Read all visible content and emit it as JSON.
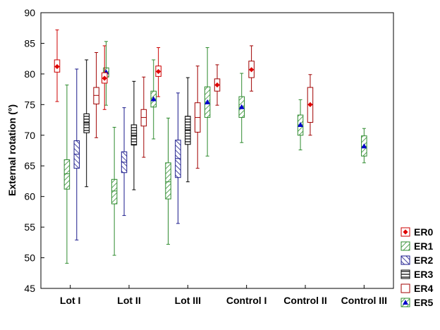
{
  "chart_data": {
    "type": "boxplot",
    "ylabel": "External rotation (°)",
    "xlabel": "",
    "ylim": [
      45,
      90
    ],
    "yticks": [
      45,
      50,
      55,
      60,
      65,
      70,
      75,
      80,
      85,
      90
    ],
    "grid": false,
    "legend_position": "right-bottom",
    "categories": [
      "Lot I",
      "Lot II",
      "Lot III",
      "Control I",
      "Control II",
      "Control III"
    ],
    "series": [
      {
        "name": "ER0",
        "color": "#cc0000",
        "pattern": "filled",
        "marker": "diamond"
      },
      {
        "name": "ER1",
        "color": "#2e8b2e",
        "pattern": "diag-right"
      },
      {
        "name": "ER2",
        "color": "#1a1a8c",
        "pattern": "diag-left"
      },
      {
        "name": "ER3",
        "color": "#000000",
        "pattern": "horizontal"
      },
      {
        "name": "ER4",
        "color": "#a00000",
        "pattern": "empty"
      },
      {
        "name": "ER5",
        "color": "#2e8b2e",
        "pattern": "diag-right",
        "marker": "triangle"
      }
    ],
    "boxes": [
      {
        "category": "Lot I",
        "series": "ER0",
        "min": 75.5,
        "q1": 80.3,
        "median": 81.2,
        "q3": 82.3,
        "max": 87.2,
        "mean": 81.2
      },
      {
        "category": "Lot I",
        "series": "ER1",
        "min": 49.1,
        "q1": 61.2,
        "median": 63.7,
        "q3": 66.0,
        "max": 78.2
      },
      {
        "category": "Lot I",
        "series": "ER2",
        "min": 52.9,
        "q1": 64.6,
        "median": 66.9,
        "q3": 69.1,
        "max": 80.8
      },
      {
        "category": "Lot I",
        "series": "ER3",
        "min": 61.6,
        "q1": 70.4,
        "median": 72.0,
        "q3": 73.5,
        "max": 82.3
      },
      {
        "category": "Lot I",
        "series": "ER4",
        "min": 69.6,
        "q1": 75.1,
        "median": 76.5,
        "q3": 77.8,
        "max": 83.5
      },
      {
        "category": "Lot I",
        "series": "ER5",
        "min": 74.9,
        "q1": 79.5,
        "median": 80.3,
        "q3": 81.0,
        "max": 85.3,
        "mean": 80.3
      },
      {
        "category": "Lot II",
        "series": "ER0",
        "min": 74.2,
        "q1": 78.5,
        "median": 79.3,
        "q3": 80.2,
        "max": 84.6,
        "mean": 79.3
      },
      {
        "category": "Lot II",
        "series": "ER1",
        "min": 50.4,
        "q1": 58.8,
        "median": 60.9,
        "q3": 62.8,
        "max": 71.3
      },
      {
        "category": "Lot II",
        "series": "ER2",
        "min": 56.9,
        "q1": 63.9,
        "median": 65.6,
        "q3": 67.3,
        "max": 74.5
      },
      {
        "category": "Lot II",
        "series": "ER3",
        "min": 61.1,
        "q1": 68.4,
        "median": 70.0,
        "q3": 71.7,
        "max": 78.8
      },
      {
        "category": "Lot II",
        "series": "ER4",
        "min": 66.4,
        "q1": 71.5,
        "median": 72.9,
        "q3": 74.2,
        "max": 79.5
      },
      {
        "category": "Lot II",
        "series": "ER5",
        "min": 69.4,
        "q1": 74.6,
        "median": 75.9,
        "q3": 77.2,
        "max": 82.3,
        "mean": 75.9
      },
      {
        "category": "Lot III",
        "series": "ER0",
        "min": 76.3,
        "q1": 79.6,
        "median": 80.4,
        "q3": 81.3,
        "max": 84.3,
        "mean": 80.4
      },
      {
        "category": "Lot III",
        "series": "ER1",
        "min": 52.2,
        "q1": 59.6,
        "median": 62.4,
        "q3": 65.5,
        "max": 72.8
      },
      {
        "category": "Lot III",
        "series": "ER2",
        "min": 55.6,
        "q1": 63.1,
        "median": 66.2,
        "q3": 69.2,
        "max": 76.9
      },
      {
        "category": "Lot III",
        "series": "ER3",
        "min": 62.4,
        "q1": 68.5,
        "median": 70.9,
        "q3": 73.1,
        "max": 79.4
      },
      {
        "category": "Lot III",
        "series": "ER4",
        "min": 64.6,
        "q1": 70.5,
        "median": 72.9,
        "q3": 75.3,
        "max": 81.3
      },
      {
        "category": "Lot III",
        "series": "ER5",
        "min": 66.6,
        "q1": 72.9,
        "median": 75.4,
        "q3": 77.9,
        "max": 84.3,
        "mean": 75.4
      },
      {
        "category": "Lot III",
        "series": "ER4",
        "min": 74.9,
        "q1": 77.2,
        "median": 78.2,
        "q3": 79.2,
        "max": 81.5,
        "mean": 78.2,
        "marker_series": "ER0"
      },
      {
        "category": "Control I",
        "series": "ER5",
        "min": 68.8,
        "q1": 72.9,
        "median": 74.6,
        "q3": 76.3,
        "max": 80.1,
        "mean": 74.6
      },
      {
        "category": "Control I",
        "series": "ER4",
        "min": 77.2,
        "q1": 79.4,
        "median": 80.7,
        "q3": 82.1,
        "max": 84.6,
        "mean": 80.7,
        "marker_series": "ER0"
      },
      {
        "category": "Control II",
        "series": "ER5",
        "min": 67.6,
        "q1": 70.0,
        "median": 71.7,
        "q3": 73.3,
        "max": 75.8,
        "mean": 71.7
      },
      {
        "category": "Control II",
        "series": "ER4",
        "min": 70.0,
        "q1": 72.1,
        "median": 75.0,
        "q3": 77.8,
        "max": 79.9,
        "mean": 75.0,
        "marker_series": "ER0"
      },
      {
        "category": "Control III",
        "series": "ER5",
        "min": 65.5,
        "q1": 66.6,
        "median": 68.2,
        "q3": 69.9,
        "max": 71.1,
        "mean": 68.2
      }
    ]
  }
}
